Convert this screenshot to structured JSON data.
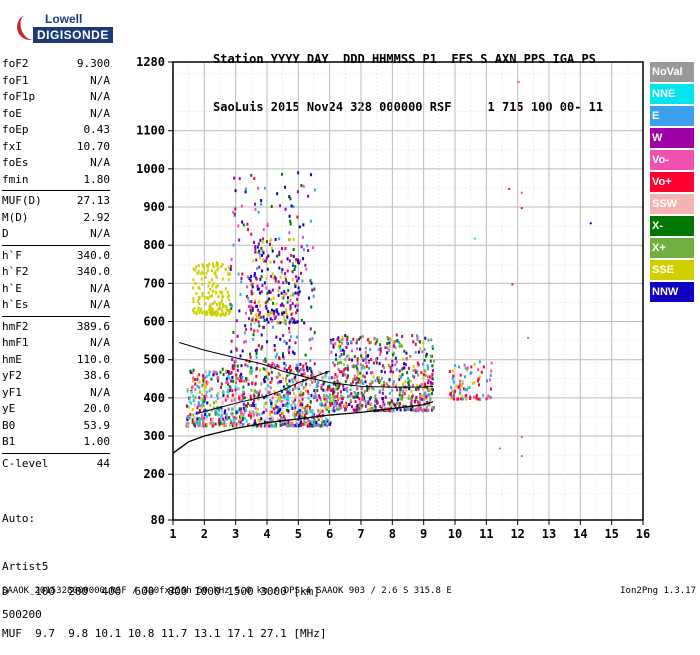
{
  "logo": {
    "line1": "Lowell",
    "line2": "DIGISONDE"
  },
  "header": {
    "line1": "Station YYYY DAY  DDD HHMMSS P1  FFS S AXN PPS IGA PS",
    "line2": "SaoLuis 2015 Nov24 328 000000 RSF     1 715 100 00- 11"
  },
  "params": [
    {
      "label": "foF2",
      "value": "9.300"
    },
    {
      "label": "foF1",
      "value": "N/A"
    },
    {
      "label": "foF1p",
      "value": "N/A"
    },
    {
      "label": "foE",
      "value": "N/A"
    },
    {
      "label": "foEp",
      "value": "0.43"
    },
    {
      "label": "fxI",
      "value": "10.70"
    },
    {
      "label": "foEs",
      "value": "N/A"
    },
    {
      "label": "fmin",
      "value": "1.80"
    },
    {
      "label": "MUF(D)",
      "value": "27.13"
    },
    {
      "label": "M(D)",
      "value": "2.92"
    },
    {
      "label": "D",
      "value": "N/A"
    },
    {
      "label": "h`F",
      "value": "340.0"
    },
    {
      "label": "h`F2",
      "value": "340.0"
    },
    {
      "label": "h`E",
      "value": "N/A"
    },
    {
      "label": "h`Es",
      "value": "N/A"
    },
    {
      "label": "hmF2",
      "value": "389.6"
    },
    {
      "label": "hmF1",
      "value": "N/A"
    },
    {
      "label": "hmE",
      "value": "110.0"
    },
    {
      "label": "yF2",
      "value": "38.6"
    },
    {
      "label": "yF1",
      "value": "N/A"
    },
    {
      "label": "yE",
      "value": "20.0"
    },
    {
      "label": "B0",
      "value": "53.9"
    },
    {
      "label": "B1",
      "value": "1.00"
    },
    {
      "label": "C-level",
      "value": "44"
    }
  ],
  "auto": {
    "line1": "Auto:",
    "line2": "Artist5",
    "line3": "500200"
  },
  "legend": [
    {
      "label": "NoVal",
      "color": "#999999"
    },
    {
      "label": "NNE",
      "color": "#00e6f0"
    },
    {
      "label": "E",
      "color": "#3ba0f0"
    },
    {
      "label": "W",
      "color": "#a000a8"
    },
    {
      "label": "Vo-",
      "color": "#f050b0"
    },
    {
      "label": "Vo+",
      "color": "#ff0030"
    },
    {
      "label": "SSW",
      "color": "#f4b4b4"
    },
    {
      "label": "X-",
      "color": "#007800"
    },
    {
      "label": "X+",
      "color": "#70b040"
    },
    {
      "label": "SSE",
      "color": "#d0d000"
    },
    {
      "label": "NNW",
      "color": "#1000c0"
    }
  ],
  "bottom": {
    "d_row": "D    100  200  400  600  800 1000 1500 3000 [km]",
    "muf_row": "MUF  9.7  9.8 10.1 10.8 11.7 13.1 17.1 27.1 [MHz]"
  },
  "footer": {
    "left": "SAAOK_2015328000000.RSF / 300fx256h 50 kHz 5.0 km / DPS-4 SAAOK 903 / 2.6 S 315.8 E",
    "right": "Ion2Png 1.3.17"
  },
  "chart_data": {
    "type": "scatter",
    "xlim": [
      1,
      16
    ],
    "ylim": [
      80,
      1280
    ],
    "x_ticks": [
      1,
      2,
      3,
      4,
      5,
      6,
      7,
      8,
      9,
      10,
      11,
      12,
      13,
      14,
      15,
      16
    ],
    "y_ticks": [
      80,
      200,
      300,
      400,
      500,
      600,
      700,
      800,
      900,
      1000,
      1100,
      1280
    ],
    "grid": true,
    "clusters": [
      {
        "x": [
          1.4,
          6.0
        ],
        "y": [
          330,
          480
        ],
        "count": 900,
        "colors": [
          "#ff0030",
          "#f050b0",
          "#a000a8",
          "#d0d000",
          "#3ba0f0",
          "#1000c0",
          "#70b040",
          "#007800",
          "#00e6f0",
          "#f4b4b4"
        ]
      },
      {
        "x": [
          1.6,
          2.8
        ],
        "y": [
          620,
          760
        ],
        "count": 160,
        "colors": [
          "#d0d000"
        ]
      },
      {
        "x": [
          3.4,
          5.0
        ],
        "y": [
          600,
          820
        ],
        "count": 180,
        "colors": [
          "#d0d000",
          "#a000a8",
          "#1000c0"
        ]
      },
      {
        "x": [
          2.8,
          5.5
        ],
        "y": [
          480,
          1000
        ],
        "count": 280,
        "colors": [
          "#a000a8",
          "#1000c0",
          "#ff0030",
          "#f050b0",
          "#3ba0f0",
          "#007800"
        ]
      },
      {
        "x": [
          6.0,
          9.3
        ],
        "y": [
          370,
          570
        ],
        "count": 650,
        "colors": [
          "#ff0030",
          "#f050b0",
          "#a000a8",
          "#d0d000",
          "#1000c0",
          "#3ba0f0",
          "#70b040",
          "#007800"
        ]
      },
      {
        "x": [
          9.8,
          11.2
        ],
        "y": [
          400,
          500
        ],
        "count": 90,
        "colors": [
          "#d0d000",
          "#ff0030",
          "#3ba0f0",
          "#f050b0"
        ]
      }
    ],
    "sparse_points": [
      {
        "x": 12.0,
        "y": 1230,
        "color": "#f050b0"
      },
      {
        "x": 12.0,
        "y": 1160,
        "color": "#f050b0"
      },
      {
        "x": 12.1,
        "y": 940,
        "color": "#f050b0"
      },
      {
        "x": 12.1,
        "y": 900,
        "color": "#ff0030"
      },
      {
        "x": 11.7,
        "y": 950,
        "color": "#ff0030"
      },
      {
        "x": 14.3,
        "y": 860,
        "color": "#1000c0"
      },
      {
        "x": 12.1,
        "y": 300,
        "color": "#f050b0"
      },
      {
        "x": 12.1,
        "y": 250,
        "color": "#f050b0"
      },
      {
        "x": 11.4,
        "y": 270,
        "color": "#3ba0f0"
      },
      {
        "x": 12.3,
        "y": 560,
        "color": "#f050b0"
      },
      {
        "x": 11.8,
        "y": 700,
        "color": "#ff0030"
      },
      {
        "x": 10.6,
        "y": 820,
        "color": "#00e6f0"
      }
    ],
    "virtual_height_curve": {
      "x": [
        1,
        1.5,
        2,
        3,
        4,
        5,
        6,
        7,
        8,
        9,
        9.3
      ],
      "y": [
        255,
        285,
        300,
        320,
        335,
        345,
        355,
        362,
        372,
        382,
        390
      ]
    },
    "profile_curve": {
      "x": [
        1.2,
        2,
        3,
        3.8,
        4.5,
        5.2,
        6,
        7,
        8,
        9,
        9.3
      ],
      "y": [
        545,
        525,
        505,
        490,
        470,
        455,
        440,
        430,
        428,
        428,
        430
      ]
    },
    "trace_curve": {
      "x": [
        1.8,
        2.5,
        3.2,
        4.0,
        4.5,
        5.0,
        5.5,
        6.0
      ],
      "y": [
        360,
        375,
        390,
        405,
        420,
        440,
        455,
        470
      ]
    }
  }
}
